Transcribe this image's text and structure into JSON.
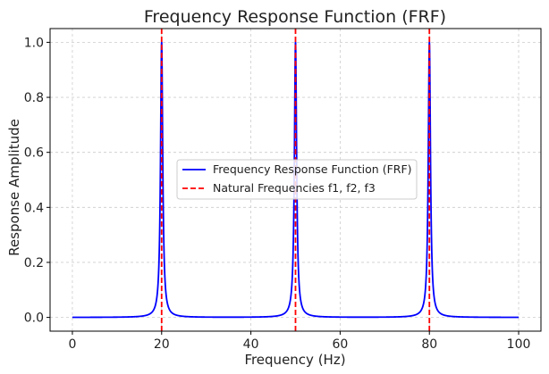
{
  "chart_data": {
    "type": "line",
    "title": "Frequency Response Function (FRF)",
    "xlabel": "Frequency (Hz)",
    "ylabel": "Response Amplitude",
    "xlim": [
      -5,
      105
    ],
    "ylim": [
      -0.05,
      1.05
    ],
    "xticks": [
      0,
      20,
      40,
      60,
      80,
      100
    ],
    "xtick_labels": [
      "0",
      "20",
      "40",
      "60",
      "80",
      "100"
    ],
    "yticks": [
      0.0,
      0.2,
      0.4,
      0.6,
      0.8,
      1.0
    ],
    "ytick_labels": [
      "0.0",
      "0.2",
      "0.4",
      "0.6",
      "0.8",
      "1.0"
    ],
    "grid": true,
    "legend_position": "center",
    "series": [
      {
        "name": "Frequency Response Function (FRF)",
        "style": "solid",
        "color": "#0000ff",
        "peaks_x": [
          20,
          50,
          80
        ],
        "peak_value": 1.0,
        "x_range": [
          0,
          100
        ]
      },
      {
        "name": "Natural Frequencies f1, f2, f3",
        "style": "dashed",
        "color": "#ff0000",
        "x": [
          20,
          50,
          80
        ]
      }
    ]
  }
}
